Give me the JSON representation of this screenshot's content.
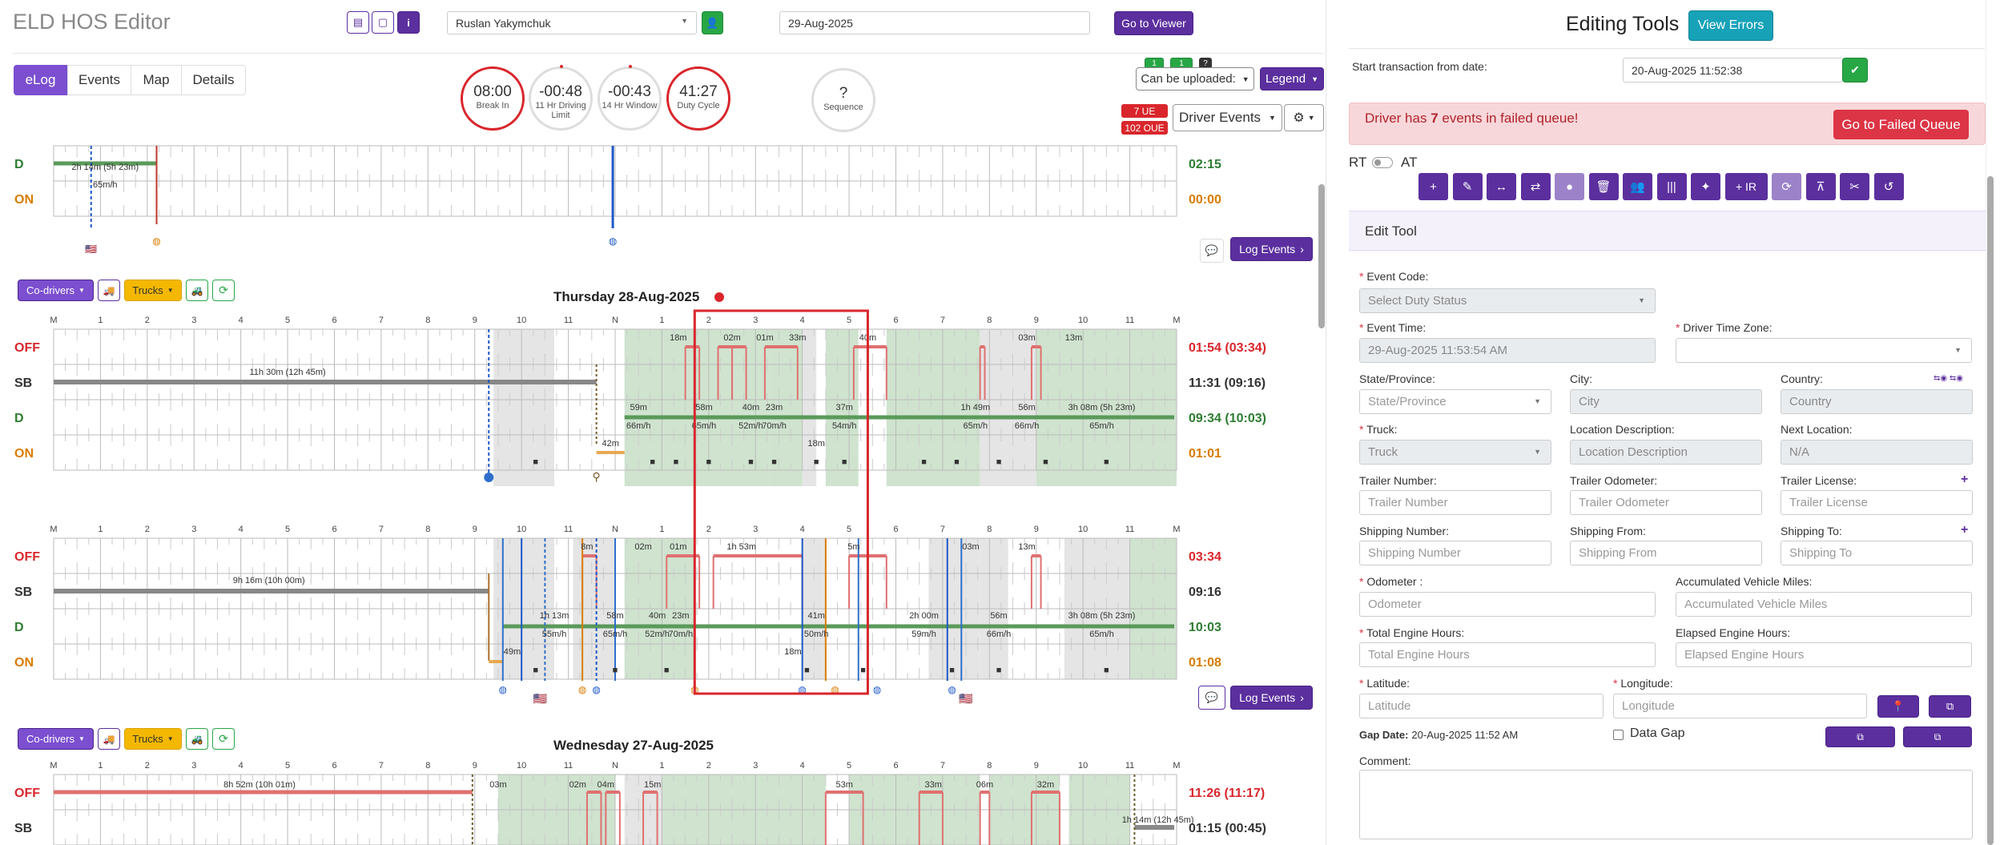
{
  "header": {
    "title": "ELD HOS Editor",
    "driver": "Ruslan Yakymchuk",
    "date": "29-Aug-2025",
    "go_to_viewer": "Go to Viewer"
  },
  "tabs": [
    "eLog",
    "Events",
    "Map",
    "Details"
  ],
  "clocks": [
    {
      "value": "08:00",
      "label": "Break In",
      "ring": "#d9262c",
      "dot": false
    },
    {
      "value": "-00:48",
      "label": "11 Hr Driving Limit",
      "ring": "#ddd",
      "dot": true
    },
    {
      "value": "-00:43",
      "label": "14 Hr Window",
      "ring": "#ddd",
      "dot": true
    },
    {
      "value": "41:27",
      "label": "Duty Cycle",
      "ring": "#d9262c",
      "dot": false
    },
    {
      "value": "?",
      "label": "Sequence",
      "ring": "#ddd",
      "dot": false
    }
  ],
  "right_controls": {
    "badge1": "1",
    "badge2": "1",
    "badge3": "?",
    "can_be_uploaded": "Can be uploaded:",
    "legend": "Legend",
    "ue": "7 UE",
    "oue": "102 OUE",
    "driver_events": "Driver Events",
    "log_events": "Log Events"
  },
  "day_controls": {
    "co_drivers": "Co-drivers",
    "trucks": "Trucks"
  },
  "hours": [
    "M",
    "1",
    "2",
    "3",
    "4",
    "5",
    "6",
    "7",
    "8",
    "9",
    "10",
    "11",
    "N",
    "1",
    "2",
    "3",
    "4",
    "5",
    "6",
    "7",
    "8",
    "9",
    "10",
    "11",
    "M"
  ],
  "status_labels": [
    "OFF",
    "SB",
    "D",
    "ON"
  ],
  "status_colors": {
    "OFF": "#d9262c",
    "SB": "#333333",
    "D": "#2e7d32",
    "ON": "#d97c00"
  },
  "grid_top": {
    "rows": [
      "D",
      "ON"
    ],
    "totals": [
      "02:15",
      "00:00"
    ],
    "texts": [
      "2h 14m (5h 23m)",
      "65m/h"
    ]
  },
  "day1": {
    "title": "Thursday 28-Aug-2025",
    "totals": [
      "01:54 (03:34)",
      "11:31 (09:16)",
      "09:34 (10:03)",
      "01:01"
    ],
    "texts": [
      "11h 30m (12h 45m)",
      "18m",
      "02m",
      "01m",
      "33m",
      "40m",
      "03m",
      "13m",
      "59m",
      "66m/h",
      "58m",
      "65m/h",
      "40m",
      "52m/h",
      "23m",
      "70m/h",
      "37m",
      "54m/h",
      "1h 49m",
      "65m/h",
      "56m",
      "66m/h",
      "3h 08m (5h 23m)",
      "65m/h",
      "42m",
      "18m"
    ]
  },
  "day1b": {
    "totals": [
      "03:34",
      "09:16",
      "10:03",
      "01:08"
    ],
    "texts": [
      "9h 16m (10h 00m)",
      "8m",
      "02m",
      "01m",
      "1h 53m",
      "5m",
      "03m",
      "13m",
      "1h 13m",
      "55m/h",
      "58m",
      "65m/h",
      "40m",
      "52m/h",
      "23m",
      "70m/h",
      "41m",
      "50m/h",
      "2h 00m",
      "59m/h",
      "56m",
      "66m/h",
      "3h 08m (5h 23m)",
      "65m/h",
      "49m",
      "18m"
    ]
  },
  "day2": {
    "title": "Wednesday 27-Aug-2025",
    "totals": [
      "11:26 (11:17)",
      "01:15 (00:45)"
    ],
    "texts": [
      "8h 52m (10h 01m)",
      "03m",
      "02m",
      "04m",
      "15m",
      "53m",
      "33m",
      "06m",
      "32m",
      "1h 14m (12h 45m)"
    ]
  },
  "editing": {
    "title": "Editing Tools",
    "view_errors": "View Errors",
    "start_label": "Start transaction from date:",
    "start_value": "20-Aug-2025 11:52:38",
    "failed_pre": "Driver has ",
    "failed_count": "7",
    "failed_post": " events in failed queue!",
    "failed_btn": "Go to Failed Queue",
    "rt": "RT",
    "at": "AT",
    "tools": [
      "+",
      "✎",
      "↔",
      "⇄",
      "●",
      "🗑",
      "👥",
      "|||",
      "✦",
      "+ IR",
      "⟳",
      "⊼",
      "✂",
      "↺"
    ],
    "edit_tool": "Edit Tool",
    "fields": {
      "event_code": "Event Code:",
      "event_code_ph": "Select Duty Status",
      "event_time": "Event Time:",
      "event_time_val": "29-Aug-2025 11:53:54 AM",
      "driver_tz": "Driver Time Zone:",
      "state": "State/Province:",
      "state_ph": "State/Province",
      "city": "City:",
      "city_ph": "City",
      "country": "Country:",
      "country_ph": "Country",
      "truck": "Truck:",
      "truck_ph": "Truck",
      "loc_desc": "Location Description:",
      "loc_desc_ph": "Location Description",
      "next_loc": "Next Location:",
      "next_loc_val": "N/A",
      "trailer_num": "Trailer Number:",
      "trailer_num_ph": "Trailer Number",
      "trailer_odo": "Trailer Odometer:",
      "trailer_odo_ph": "Trailer Odometer",
      "trailer_lic": "Trailer License:",
      "trailer_lic_ph": "Trailer License",
      "ship_num": "Shipping Number:",
      "ship_num_ph": "Shipping Number",
      "ship_from": "Shipping From:",
      "ship_from_ph": "Shipping From",
      "ship_to": "Shipping To:",
      "ship_to_ph": "Shipping To",
      "odometer": "Odometer :",
      "odometer_ph": "Odometer",
      "acc_miles": "Accumulated Vehicle Miles:",
      "acc_miles_ph": "Accumulated Vehicle Miles",
      "engine_hours": "Total Engine Hours:",
      "engine_hours_ph": "Total Engine Hours",
      "elapsed": "Elapsed Engine Hours:",
      "elapsed_ph": "Elapsed Engine Hours",
      "latitude": "Latitude:",
      "latitude_ph": "Latitude",
      "longitude": "Longitude:",
      "longitude_ph": "Longitude",
      "gap_label": "Gap Date:",
      "gap_value": "20-Aug-2025 11:52 AM",
      "data_gap": "Data Gap",
      "comment": "Comment:"
    }
  }
}
